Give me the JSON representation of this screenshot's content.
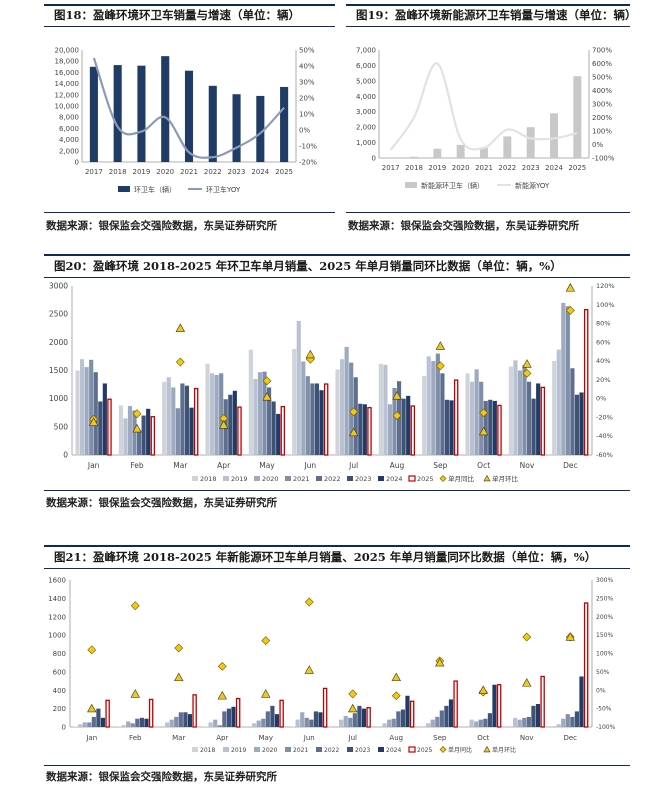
{
  "sources": {
    "top_left": "数据来源：银保监会交强险数据，东吴证券研究所",
    "top_right": "数据来源：银保监会交强险数据，东吴证券研究所",
    "middle": "数据来源：银保监会交强险数据，东吴证券研究所",
    "bottom": "数据来源：银保监会交强险数据，东吴证券研究所"
  },
  "colors": {
    "navy": "#1f3b66",
    "yoy_line": "#8a9bb8",
    "gray_bar": "#c8c8c8",
    "gray_line": "#e2e2e2",
    "red": "#c00000",
    "yellow": "#f2c811"
  },
  "chart_data": [
    {
      "id": "fig18",
      "title": "图18：盈峰环境环卫车销量与增速（单位：辆）",
      "type": "bar",
      "categories": [
        "2017",
        "2018",
        "2019",
        "2020",
        "2021",
        "2022",
        "2023",
        "2024",
        "2025"
      ],
      "series": [
        {
          "name": "环卫车（辆）",
          "axis": "left",
          "values": [
            17000,
            17300,
            17200,
            18900,
            16300,
            13600,
            12100,
            11800,
            13400
          ]
        },
        {
          "name": "环卫车YOY",
          "axis": "right",
          "kind": "line",
          "values": [
            45,
            2,
            -1,
            8,
            -14,
            -17,
            -11,
            -2,
            14
          ]
        }
      ],
      "y_left": {
        "min": 0,
        "max": 20000,
        "step": 2000,
        "ticks": [
          "0",
          "2,000",
          "4,000",
          "6,000",
          "8,000",
          "10,000",
          "12,000",
          "14,000",
          "16,000",
          "18,000",
          "20,000"
        ]
      },
      "y_right": {
        "min": -20,
        "max": 50,
        "step": 10,
        "ticks": [
          "-20%",
          "-10%",
          "0%",
          "10%",
          "20%",
          "30%",
          "40%",
          "50%"
        ]
      }
    },
    {
      "id": "fig19",
      "title": "图19：盈峰环境新能源环卫车销量与增速（单位：辆）",
      "type": "bar",
      "categories": [
        "2017",
        "2018",
        "2019",
        "2020",
        "2021",
        "2022",
        "2023",
        "2024",
        "2025"
      ],
      "series": [
        {
          "name": "新能源环卫车（辆）",
          "axis": "left",
          "values": [
            20,
            80,
            600,
            850,
            650,
            1400,
            2000,
            2900,
            5300
          ]
        },
        {
          "name": "新能源YOY",
          "axis": "right",
          "kind": "line",
          "values": [
            -40,
            200,
            600,
            40,
            -25,
            110,
            45,
            45,
            85
          ]
        }
      ],
      "y_left": {
        "min": 0,
        "max": 7000,
        "step": 1000,
        "ticks": [
          "0",
          "1,000",
          "2,000",
          "3,000",
          "4,000",
          "5,000",
          "6,000",
          "7,000"
        ]
      },
      "y_right": {
        "min": -100,
        "max": 700,
        "step": 100,
        "ticks": [
          "-100%",
          "0%",
          "100%",
          "200%",
          "300%",
          "400%",
          "500%",
          "600%",
          "700%"
        ]
      }
    },
    {
      "id": "fig20",
      "title": "图20：盈峰环境 2018-2025 年环卫车单月销量、2025 年单月销量同环比数据（单位：辆，%）",
      "type": "bar",
      "categories": [
        "Jan",
        "Feb",
        "Mar",
        "Apr",
        "May",
        "Jun",
        "Jul",
        "Aug",
        "Sep",
        "Oct",
        "Nov",
        "Dec"
      ],
      "series": [
        {
          "name": "2018",
          "values": [
            1500,
            880,
            1300,
            1620,
            1870,
            1880,
            1520,
            1620,
            1400,
            1450,
            1570,
            1670
          ]
        },
        {
          "name": "2019",
          "values": [
            1700,
            650,
            1380,
            1450,
            1350,
            2380,
            1700,
            1600,
            1750,
            1300,
            1680,
            1870
          ]
        },
        {
          "name": "2020",
          "values": [
            1560,
            870,
            1200,
            1420,
            1470,
            1660,
            1920,
            900,
            1670,
            1520,
            1500,
            2700
          ]
        },
        {
          "name": "2021",
          "values": [
            1690,
            790,
            830,
            1450,
            1480,
            1400,
            1640,
            1190,
            1800,
            1300,
            1600,
            2640
          ]
        },
        {
          "name": "2022",
          "values": [
            1470,
            440,
            1270,
            990,
            1200,
            1270,
            1380,
            1310,
            1450,
            960,
            1300,
            1540
          ]
        },
        {
          "name": "2023",
          "values": [
            950,
            700,
            1230,
            1070,
            950,
            1270,
            910,
            1000,
            980,
            980,
            1000,
            1070
          ]
        },
        {
          "name": "2024",
          "values": [
            1270,
            820,
            840,
            1140,
            730,
            1150,
            900,
            1050,
            970,
            960,
            1270,
            1110
          ]
        },
        {
          "name": "2025",
          "values": [
            990,
            680,
            1180,
            850,
            860,
            1260,
            840,
            870,
            1330,
            880,
            1200,
            2580
          ]
        },
        {
          "name": "单月同比",
          "axis": "right",
          "kind": "diamond",
          "values": [
            -22,
            -16,
            39,
            -21,
            19,
            42,
            -14,
            -18,
            35,
            -15,
            27,
            94
          ]
        },
        {
          "name": "单月环比",
          "axis": "right",
          "kind": "triangle",
          "values": [
            -25,
            -32,
            75,
            -28,
            2,
            47,
            -36,
            3,
            56,
            -35,
            37,
            118
          ]
        }
      ],
      "y_left": {
        "min": 0,
        "max": 3000,
        "step": 500,
        "ticks": [
          "0",
          "500",
          "1000",
          "1500",
          "2000",
          "2500",
          "3000"
        ]
      },
      "y_right": {
        "min": -60,
        "max": 120,
        "step": 20,
        "ticks": [
          "-60%",
          "-40%",
          "-20%",
          "0%",
          "20%",
          "40%",
          "60%",
          "80%",
          "100%",
          "120%"
        ]
      },
      "legend": [
        "2018",
        "2019",
        "2020",
        "2021",
        "2022",
        "2023",
        "2024",
        "2025",
        "单月同比",
        "单月环比"
      ]
    },
    {
      "id": "fig21",
      "title": "图21：盈峰环境 2018-2025 年新能源环卫车单月销量、2025 年单月销量同环比数据（单位：辆，%）",
      "type": "bar",
      "categories": [
        "Jan",
        "Feb",
        "Mar",
        "Apr",
        "May",
        "Jun",
        "Jul",
        "Aug",
        "Sep",
        "Oct",
        "Nov",
        "Dec"
      ],
      "series": [
        {
          "name": "2018",
          "values": [
            5,
            5,
            10,
            5,
            10,
            5,
            10,
            10,
            10,
            10,
            10,
            10
          ]
        },
        {
          "name": "2019",
          "values": [
            30,
            20,
            50,
            50,
            40,
            80,
            80,
            40,
            40,
            80,
            100,
            30
          ]
        },
        {
          "name": "2020",
          "values": [
            50,
            60,
            80,
            80,
            70,
            160,
            120,
            80,
            80,
            60,
            80,
            90
          ]
        },
        {
          "name": "2021",
          "values": [
            50,
            40,
            110,
            20,
            90,
            100,
            100,
            90,
            110,
            80,
            100,
            140
          ]
        },
        {
          "name": "2022",
          "values": [
            110,
            90,
            160,
            170,
            170,
            80,
            150,
            170,
            180,
            90,
            110,
            110
          ]
        },
        {
          "name": "2023",
          "values": [
            200,
            100,
            160,
            200,
            230,
            170,
            230,
            190,
            230,
            150,
            230,
            170
          ]
        },
        {
          "name": "2024",
          "values": [
            100,
            90,
            140,
            220,
            140,
            160,
            200,
            340,
            300,
            460,
            250,
            550
          ]
        },
        {
          "name": "2025",
          "values": [
            290,
            300,
            350,
            310,
            290,
            420,
            210,
            280,
            500,
            460,
            550,
            1350
          ]
        },
        {
          "name": "单月同比",
          "axis": "right",
          "kind": "diamond",
          "values": [
            110,
            230,
            115,
            65,
            135,
            240,
            -10,
            -15,
            80,
            -5,
            145,
            145
          ]
        },
        {
          "name": "单月环比",
          "axis": "right",
          "kind": "triangle",
          "values": [
            -50,
            -10,
            35,
            -15,
            -10,
            55,
            -50,
            35,
            75,
            0,
            20,
            145
          ]
        }
      ],
      "y_left": {
        "min": 0,
        "max": 1600,
        "step": 200,
        "ticks": [
          "0",
          "200",
          "400",
          "600",
          "800",
          "1000",
          "1200",
          "1400",
          "1600"
        ]
      },
      "y_right": {
        "min": -100,
        "max": 300,
        "step": 50,
        "ticks": [
          "-100%",
          "-50%",
          "0%",
          "50%",
          "100%",
          "150%",
          "200%",
          "250%",
          "300%"
        ]
      },
      "legend": [
        "2018",
        "2019",
        "2020",
        "2021",
        "2022",
        "2023",
        "2024",
        "2025",
        "单月同比",
        "单月环比"
      ]
    }
  ]
}
